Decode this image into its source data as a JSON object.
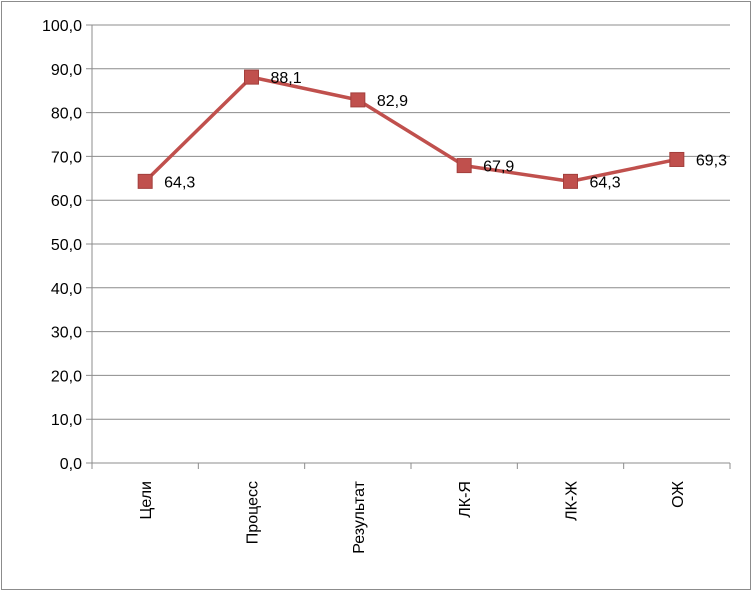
{
  "chart_data": {
    "type": "line",
    "title": "",
    "xlabel": "",
    "ylabel": "",
    "categories": [
      "Цели",
      "Процесс",
      "Результат",
      "ЛК-Я",
      "ЛК-Ж",
      "ОЖ"
    ],
    "y_ticks": [
      "0,0",
      "10,0",
      "20,0",
      "30,0",
      "40,0",
      "50,0",
      "60,0",
      "70,0",
      "80,0",
      "90,0",
      "100,0"
    ],
    "ylim": [
      0,
      100
    ],
    "grid": true,
    "legend": "none",
    "series": [
      {
        "values": [
          64.3,
          88.1,
          82.9,
          67.9,
          64.3,
          69.3
        ],
        "labels": [
          "64,3",
          "88,1",
          "82,9",
          "67,9",
          "64,3",
          "69,3"
        ],
        "color": "#c0504d",
        "marker": "square"
      }
    ]
  }
}
